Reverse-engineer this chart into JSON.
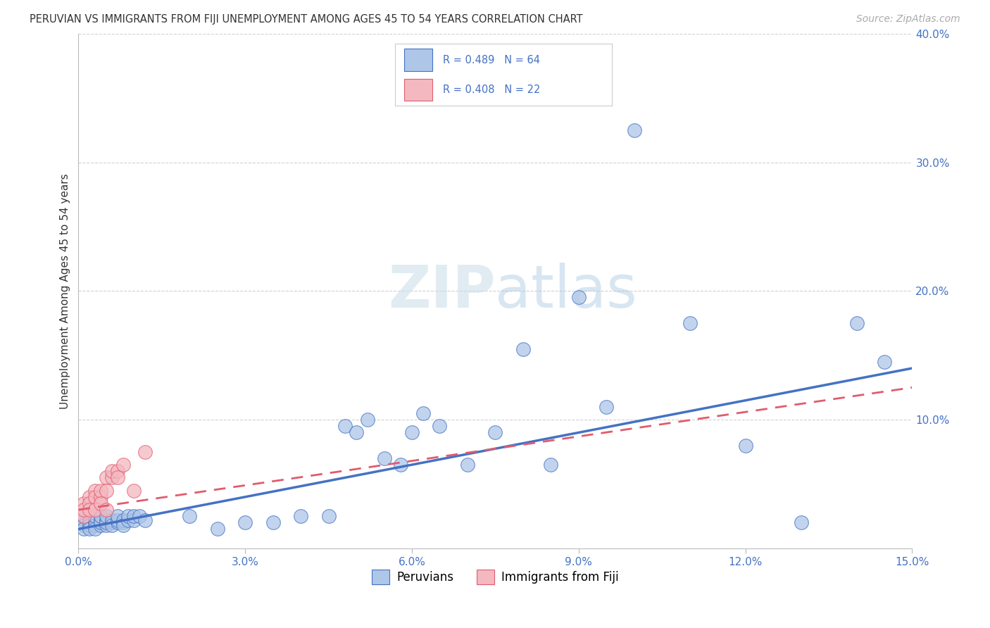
{
  "title": "PERUVIAN VS IMMIGRANTS FROM FIJI UNEMPLOYMENT AMONG AGES 45 TO 54 YEARS CORRELATION CHART",
  "source": "Source: ZipAtlas.com",
  "ylabel": "Unemployment Among Ages 45 to 54 years",
  "xlim": [
    0.0,
    0.15
  ],
  "ylim": [
    0.0,
    0.4
  ],
  "xticks": [
    0.0,
    0.03,
    0.06,
    0.09,
    0.12,
    0.15
  ],
  "xtick_labels": [
    "0.0%",
    "3.0%",
    "6.0%",
    "9.0%",
    "12.0%",
    "15.0%"
  ],
  "yticks": [
    0.1,
    0.2,
    0.3,
    0.4
  ],
  "ytick_labels": [
    "10.0%",
    "20.0%",
    "30.0%",
    "40.0%"
  ],
  "peruvian_color": "#aec6e8",
  "fiji_color": "#f4b8c1",
  "peruvian_line_color": "#4472c4",
  "fiji_line_color": "#e05c6e",
  "R_peruvian": 0.489,
  "N_peruvian": 64,
  "R_fiji": 0.408,
  "N_fiji": 22,
  "legend_label_peruvian": "Peruvians",
  "legend_label_fiji": "Immigrants from Fiji",
  "watermark_zip": "ZIP",
  "watermark_atlas": "atlas",
  "background_color": "#ffffff",
  "grid_color": "#cccccc",
  "title_color": "#333333",
  "axis_label_color": "#4472c4",
  "peruvian_x": [
    0.001,
    0.001,
    0.001,
    0.001,
    0.001,
    0.002,
    0.002,
    0.002,
    0.002,
    0.002,
    0.003,
    0.003,
    0.003,
    0.003,
    0.003,
    0.004,
    0.004,
    0.004,
    0.004,
    0.005,
    0.005,
    0.005,
    0.005,
    0.006,
    0.006,
    0.006,
    0.007,
    0.007,
    0.007,
    0.008,
    0.008,
    0.008,
    0.009,
    0.009,
    0.01,
    0.01,
    0.011,
    0.012,
    0.02,
    0.025,
    0.03,
    0.035,
    0.04,
    0.045,
    0.048,
    0.05,
    0.052,
    0.055,
    0.058,
    0.06,
    0.062,
    0.065,
    0.07,
    0.075,
    0.08,
    0.085,
    0.09,
    0.095,
    0.1,
    0.11,
    0.12,
    0.13,
    0.14,
    0.145
  ],
  "peruvian_y": [
    0.02,
    0.022,
    0.025,
    0.018,
    0.015,
    0.022,
    0.025,
    0.02,
    0.018,
    0.015,
    0.02,
    0.022,
    0.018,
    0.025,
    0.015,
    0.018,
    0.022,
    0.02,
    0.025,
    0.018,
    0.022,
    0.02,
    0.025,
    0.02,
    0.022,
    0.018,
    0.02,
    0.022,
    0.025,
    0.02,
    0.022,
    0.018,
    0.022,
    0.025,
    0.022,
    0.025,
    0.025,
    0.022,
    0.025,
    0.015,
    0.02,
    0.02,
    0.025,
    0.025,
    0.095,
    0.09,
    0.1,
    0.07,
    0.065,
    0.09,
    0.105,
    0.095,
    0.065,
    0.09,
    0.155,
    0.065,
    0.195,
    0.11,
    0.325,
    0.175,
    0.08,
    0.02,
    0.175,
    0.145
  ],
  "fiji_x": [
    0.001,
    0.001,
    0.001,
    0.002,
    0.002,
    0.002,
    0.003,
    0.003,
    0.003,
    0.004,
    0.004,
    0.004,
    0.005,
    0.005,
    0.005,
    0.006,
    0.006,
    0.007,
    0.007,
    0.008,
    0.01,
    0.012
  ],
  "fiji_y": [
    0.035,
    0.025,
    0.03,
    0.04,
    0.035,
    0.03,
    0.045,
    0.04,
    0.03,
    0.04,
    0.045,
    0.035,
    0.055,
    0.045,
    0.03,
    0.055,
    0.06,
    0.06,
    0.055,
    0.065,
    0.045,
    0.075
  ],
  "per_line_x0": 0.0,
  "per_line_y0": 0.015,
  "per_line_x1": 0.15,
  "per_line_y1": 0.14,
  "fij_line_x0": 0.0,
  "fij_line_y0": 0.03,
  "fij_line_x1": 0.15,
  "fij_line_y1": 0.125
}
